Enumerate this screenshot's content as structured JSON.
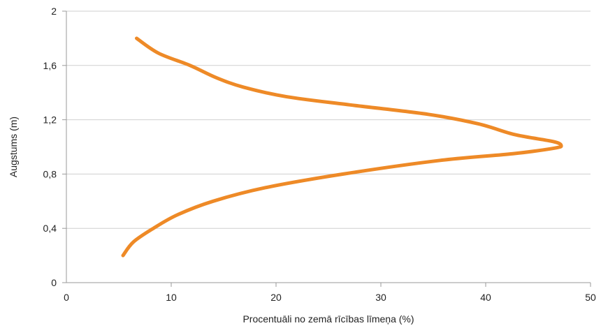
{
  "chart_data": {
    "type": "line",
    "title": "",
    "xlabel": "Procentuāli no zemā rīcības līmeņa (%)",
    "ylabel": "Augstums (m)",
    "xlim": [
      0,
      50
    ],
    "ylim": [
      0,
      2
    ],
    "x_ticks": [
      0,
      10,
      20,
      30,
      40,
      50
    ],
    "x_tick_labels": [
      "0",
      "10",
      "20",
      "30",
      "40",
      "50"
    ],
    "y_ticks": [
      0,
      0.4,
      0.8,
      1.2,
      1.6,
      2
    ],
    "y_tick_labels": [
      "0",
      "0,4",
      "0,8",
      "1,2",
      "1,6",
      "2"
    ],
    "grid": "horizontal",
    "series": [
      {
        "color": "#ee8a27",
        "points": [
          [
            5.4,
            0.2
          ],
          [
            6.4,
            0.3
          ],
          [
            8.3,
            0.4
          ],
          [
            10.6,
            0.5
          ],
          [
            14.0,
            0.6
          ],
          [
            19.0,
            0.7
          ],
          [
            26.4,
            0.8
          ],
          [
            35.6,
            0.9
          ],
          [
            42.6,
            0.95
          ],
          [
            46.5,
            0.99
          ],
          [
            47.2,
            1.01
          ],
          [
            46.4,
            1.04
          ],
          [
            42.8,
            1.09
          ],
          [
            39.3,
            1.17
          ],
          [
            34.5,
            1.24
          ],
          [
            27.0,
            1.31
          ],
          [
            21.0,
            1.37
          ],
          [
            16.9,
            1.44
          ],
          [
            14.3,
            1.51
          ],
          [
            11.8,
            1.6
          ],
          [
            8.8,
            1.69
          ],
          [
            6.7,
            1.8
          ]
        ]
      }
    ]
  }
}
